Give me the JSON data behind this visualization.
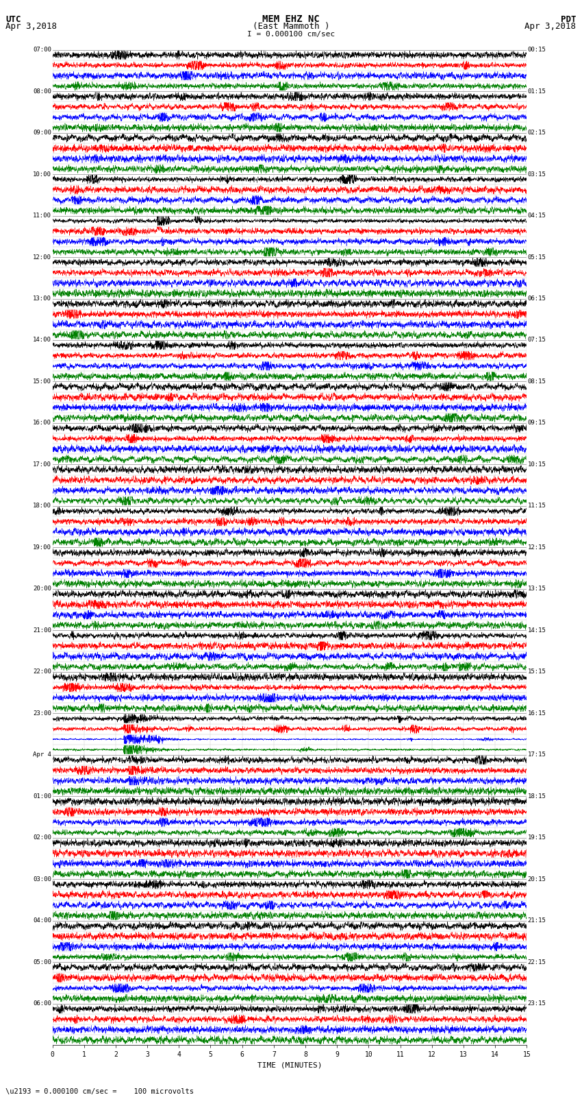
{
  "title_line1": "MEM EHZ NC",
  "title_line2": "(East Mammoth )",
  "scale_label": "I = 0.000100 cm/sec",
  "utc_label": "UTC",
  "utc_date": "Apr 3,2018",
  "pdt_label": "PDT",
  "pdt_date": "Apr 3,2018",
  "bottom_label": "\\u2193 = 0.000100 cm/sec =    100 microvolts",
  "xlabel": "TIME (MINUTES)",
  "background_color": "#ffffff",
  "trace_colors": [
    "black",
    "red",
    "blue",
    "green"
  ],
  "num_rows": 96,
  "utc_labels": [
    "07:00",
    "",
    "",
    "",
    "08:00",
    "",
    "",
    "",
    "09:00",
    "",
    "",
    "",
    "10:00",
    "",
    "",
    "",
    "11:00",
    "",
    "",
    "",
    "12:00",
    "",
    "",
    "",
    "13:00",
    "",
    "",
    "",
    "14:00",
    "",
    "",
    "",
    "15:00",
    "",
    "",
    "",
    "16:00",
    "",
    "",
    "",
    "17:00",
    "",
    "",
    "",
    "18:00",
    "",
    "",
    "",
    "19:00",
    "",
    "",
    "",
    "20:00",
    "",
    "",
    "",
    "21:00",
    "",
    "",
    "",
    "22:00",
    "",
    "",
    "",
    "23:00",
    "",
    "",
    "",
    "Apr 4",
    "",
    "",
    "",
    "01:00",
    "",
    "",
    "",
    "02:00",
    "",
    "",
    "",
    "03:00",
    "",
    "",
    "",
    "04:00",
    "",
    "",
    "",
    "05:00",
    "",
    "",
    "",
    "06:00",
    "",
    "",
    ""
  ],
  "pdt_labels": [
    "00:15",
    "",
    "",
    "",
    "01:15",
    "",
    "",
    "",
    "02:15",
    "",
    "",
    "",
    "03:15",
    "",
    "",
    "",
    "04:15",
    "",
    "",
    "",
    "05:15",
    "",
    "",
    "",
    "06:15",
    "",
    "",
    "",
    "07:15",
    "",
    "",
    "",
    "08:15",
    "",
    "",
    "",
    "09:15",
    "",
    "",
    "",
    "10:15",
    "",
    "",
    "",
    "11:15",
    "",
    "",
    "",
    "12:15",
    "",
    "",
    "",
    "13:15",
    "",
    "",
    "",
    "14:15",
    "",
    "",
    "",
    "15:15",
    "",
    "",
    "",
    "16:15",
    "",
    "",
    "",
    "17:15",
    "",
    "",
    "",
    "18:15",
    "",
    "",
    "",
    "19:15",
    "",
    "",
    "",
    "20:15",
    "",
    "",
    "",
    "21:15",
    "",
    "",
    "",
    "22:15",
    "",
    "",
    "",
    "23:15",
    "",
    "",
    ""
  ],
  "figwidth": 8.5,
  "figheight": 16.13
}
